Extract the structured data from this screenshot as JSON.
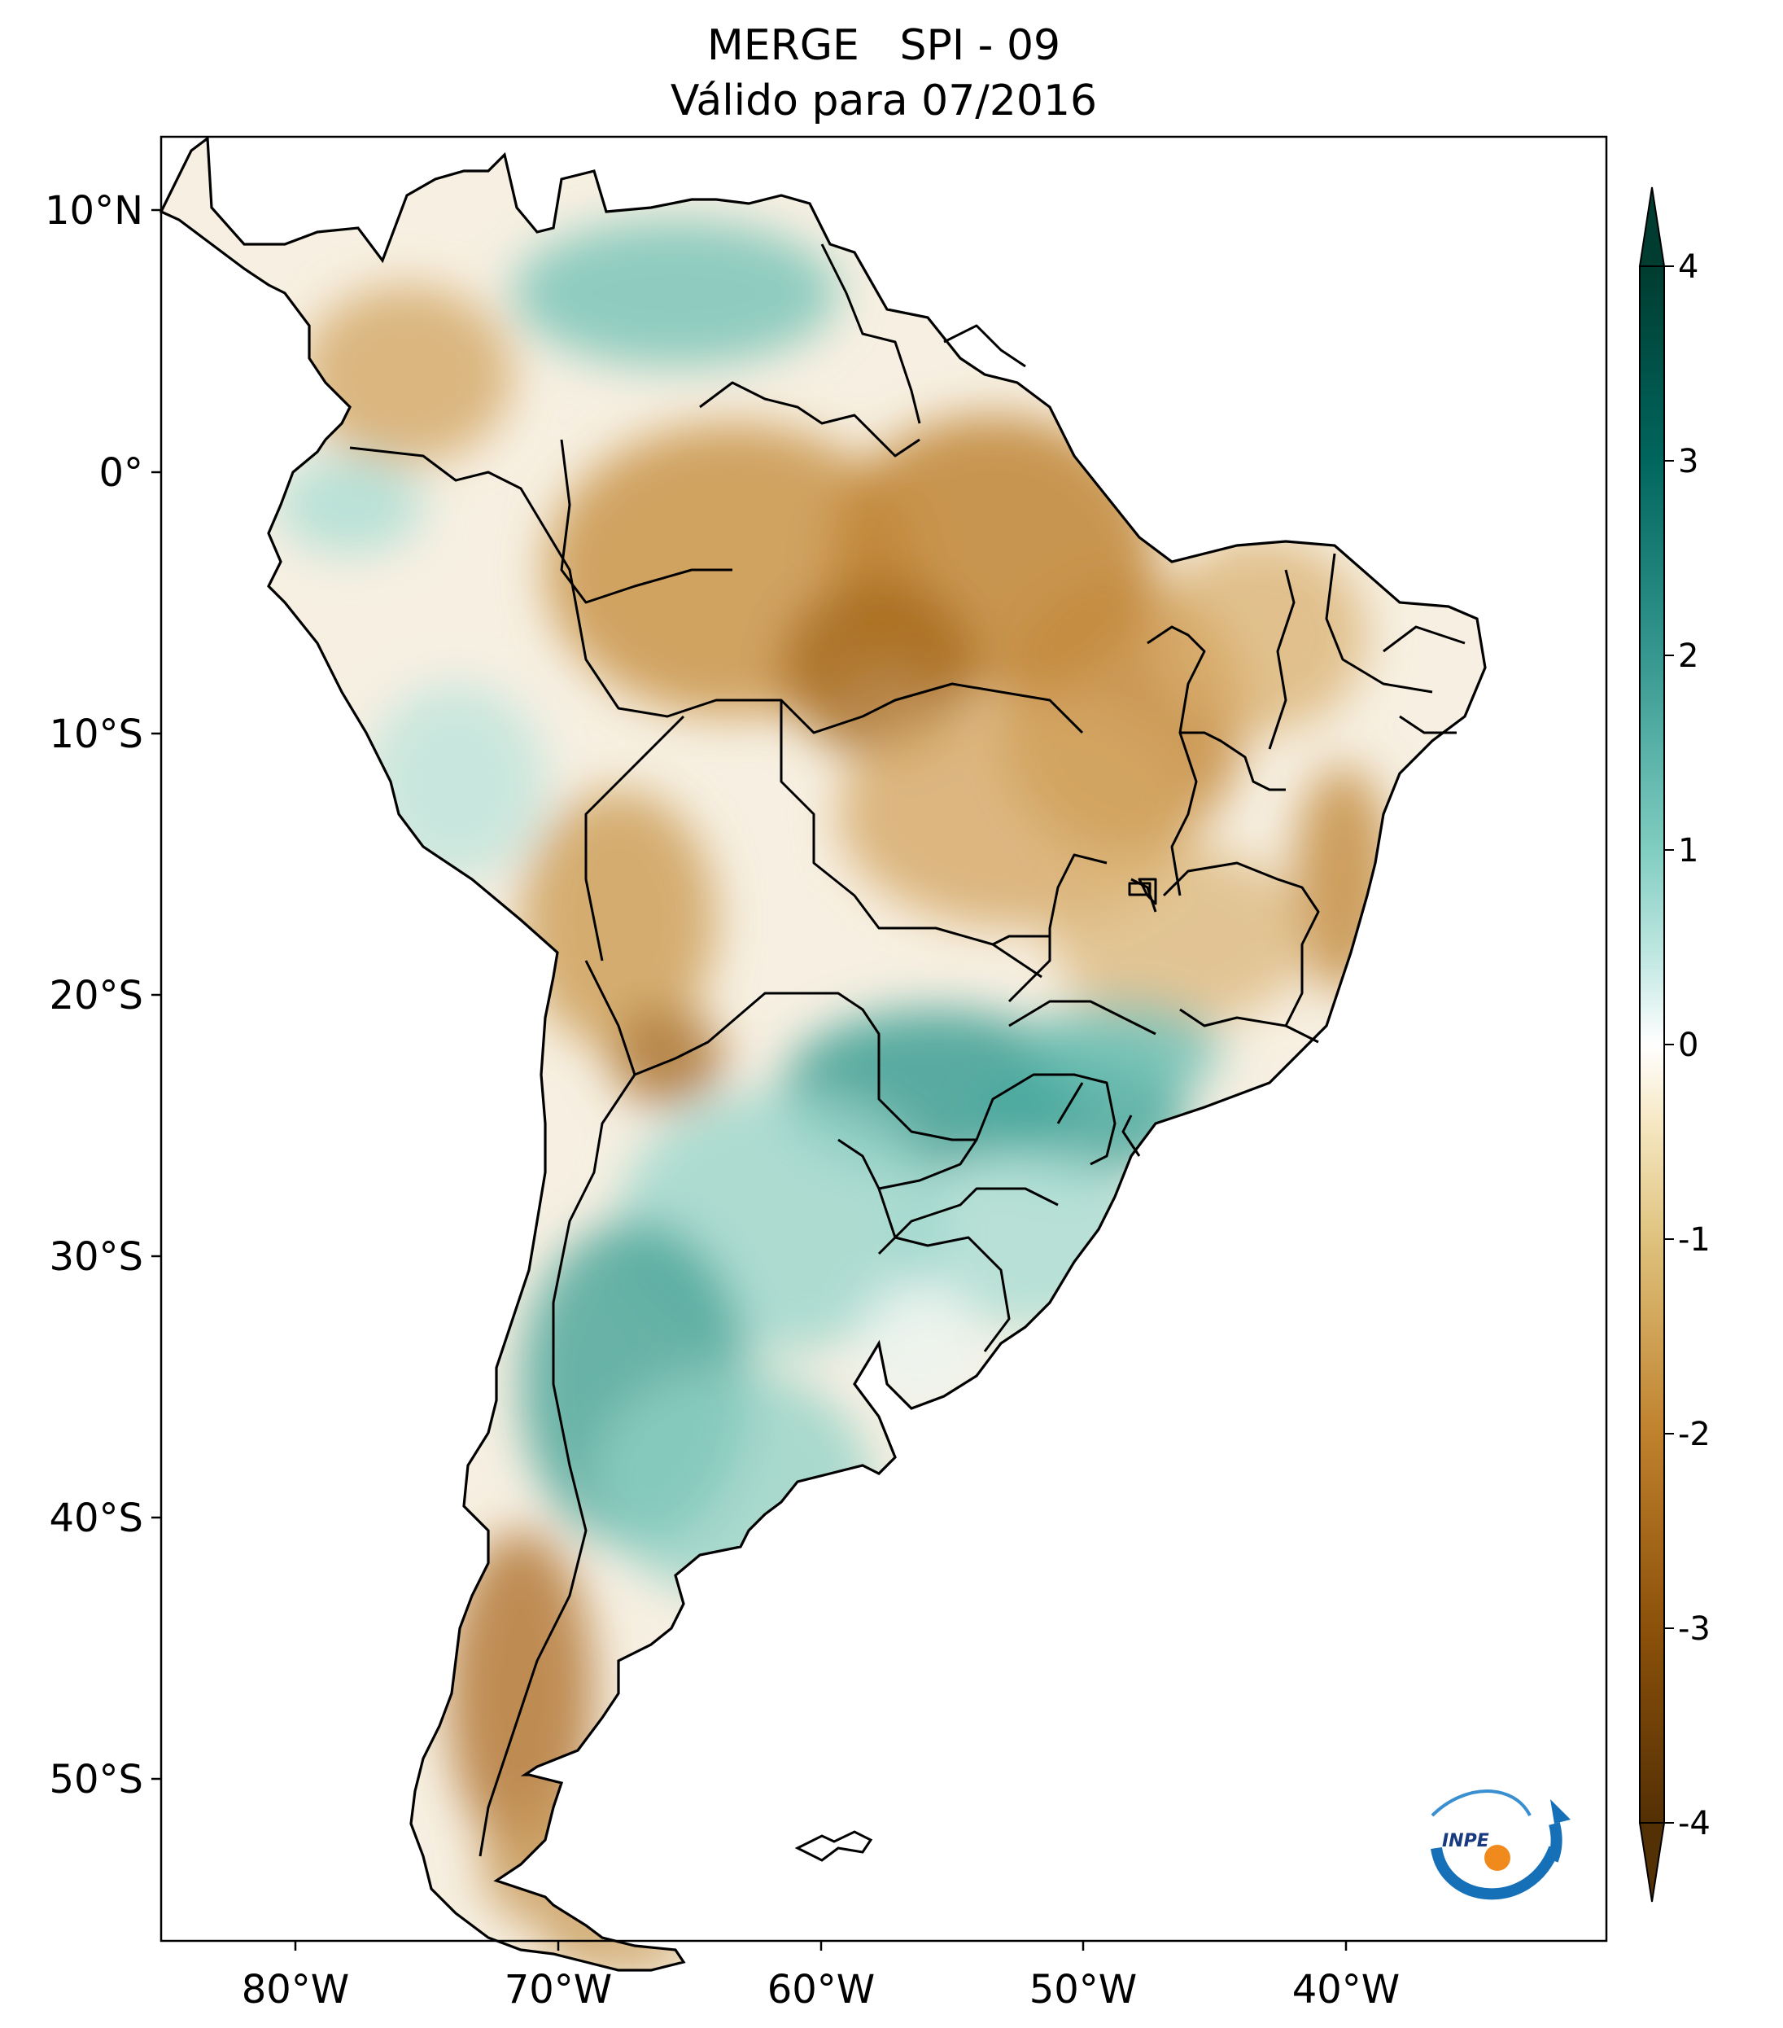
{
  "title": {
    "line1": "MERGE   SPI - 09",
    "line2": "Válido para 07/2016"
  },
  "map": {
    "variable": "SPI",
    "longitude_ticks": [
      "80°W",
      "70°W",
      "60°W",
      "50°W",
      "40°W"
    ],
    "latitude_ticks": [
      "10°N",
      "0°",
      "10°S",
      "20°S",
      "30°S",
      "40°S",
      "50°S"
    ],
    "extent": {
      "lon_min": -85,
      "lon_max": -30,
      "lat_min": -56,
      "lat_max": 13
    },
    "anomaly_regions": [
      {
        "region": "Amazon / North Brazil",
        "tendency": "dry",
        "approx_value": -1.5
      },
      {
        "region": "Northeast Brazil",
        "tendency": "dry",
        "approx_value": -1.2
      },
      {
        "region": "Paraguay / Paraná / South-east Brazil",
        "tendency": "wet",
        "approx_value": 2.5
      },
      {
        "region": "Central Argentina",
        "tendency": "wet",
        "approx_value": 2.0
      },
      {
        "region": "Southern Patagonia / Chile",
        "tendency": "dry",
        "approx_value": -2.0
      },
      {
        "region": "Venezuela",
        "tendency": "wet",
        "approx_value": 1.5
      },
      {
        "region": "Colombia",
        "tendency": "dry",
        "approx_value": -1.2
      },
      {
        "region": "Ecuador / Peru",
        "tendency": "wet",
        "approx_value": 1.0
      }
    ]
  },
  "colorbar": {
    "ticks": [
      "4",
      "3",
      "2",
      "1",
      "0",
      "-1",
      "-2",
      "-3",
      "-4"
    ],
    "min": -4,
    "max": 4,
    "extend": "both",
    "colors_dry_to_wet": [
      "#543005",
      "#8c510a",
      "#bf812d",
      "#dfc27d",
      "#f6e8c3",
      "#ffffff",
      "#c7eae5",
      "#80cdc1",
      "#35978f",
      "#01665e",
      "#003c30"
    ]
  },
  "logo": {
    "text": "INPE"
  }
}
